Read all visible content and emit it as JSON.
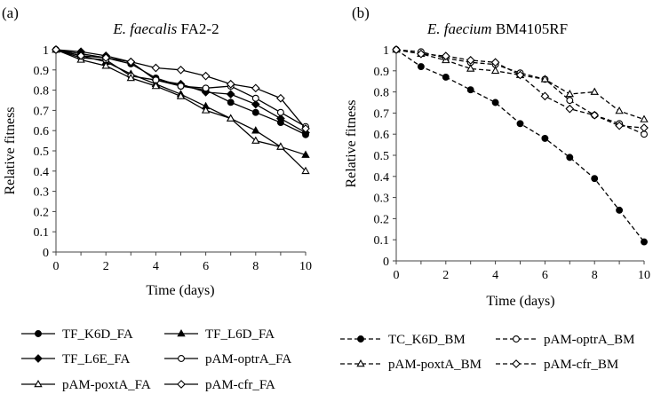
{
  "chart_data": [
    {
      "type": "line",
      "panel_label": "(a)",
      "title_italic": "E. faecalis",
      "title_rest": " FA2-2",
      "xlabel": "Time (days)",
      "ylabel": "Relative fitness",
      "xlim": [
        0,
        10
      ],
      "ylim": [
        0,
        1
      ],
      "xticks": [
        "0",
        "2",
        "4",
        "6",
        "8",
        "10"
      ],
      "yticks": [
        "0",
        "0.1",
        "0.2",
        "0.3",
        "0.4",
        "0.5",
        "0.6",
        "0.7",
        "0.8",
        "0.9",
        "1"
      ],
      "grid": false,
      "x": [
        0,
        1,
        2,
        3,
        4,
        5,
        6,
        7,
        8,
        9,
        10
      ],
      "series": [
        {
          "name": "TF_K6D_FA",
          "marker": "circle-filled",
          "dash": "solid",
          "values": [
            1.0,
            0.98,
            0.96,
            0.93,
            0.86,
            0.82,
            0.8,
            0.74,
            0.69,
            0.64,
            0.58
          ]
        },
        {
          "name": "TF_L6D_FA",
          "marker": "triangle-filled",
          "dash": "solid",
          "values": [
            1.0,
            0.97,
            0.94,
            0.88,
            0.83,
            0.78,
            0.72,
            0.66,
            0.6,
            0.52,
            0.48
          ]
        },
        {
          "name": "TF_L6E_FA",
          "marker": "diamond-filled",
          "dash": "solid",
          "values": [
            1.0,
            0.99,
            0.97,
            0.94,
            0.85,
            0.83,
            0.79,
            0.78,
            0.73,
            0.66,
            0.59
          ]
        },
        {
          "name": "pAM-optrA_FA",
          "marker": "circle-open",
          "dash": "solid",
          "values": [
            1.0,
            0.96,
            0.95,
            0.87,
            0.85,
            0.82,
            0.81,
            0.82,
            0.76,
            0.69,
            0.62
          ]
        },
        {
          "name": "pAM-poxtA_FA",
          "marker": "triangle-open",
          "dash": "solid",
          "values": [
            1.0,
            0.95,
            0.92,
            0.86,
            0.82,
            0.77,
            0.7,
            0.66,
            0.55,
            0.52,
            0.4
          ]
        },
        {
          "name": "pAM-cfr_FA",
          "marker": "diamond-open",
          "dash": "solid",
          "values": [
            1.0,
            0.97,
            0.96,
            0.94,
            0.91,
            0.9,
            0.87,
            0.83,
            0.81,
            0.76,
            0.61
          ]
        }
      ],
      "legend_position": "bottom"
    },
    {
      "type": "line",
      "panel_label": "(b)",
      "title_italic": "E. faecium",
      "title_rest": " BM4105RF",
      "xlabel": "Time (days)",
      "ylabel": "Relative fitness",
      "xlim": [
        0,
        10
      ],
      "ylim": [
        0,
        1
      ],
      "xticks": [
        "0",
        "2",
        "4",
        "6",
        "8",
        "10"
      ],
      "yticks": [
        "0",
        "0.1",
        "0.2",
        "0.3",
        "0.4",
        "0.5",
        "0.6",
        "0.7",
        "0.8",
        "0.9",
        "1"
      ],
      "grid": false,
      "x": [
        0,
        1,
        2,
        3,
        4,
        5,
        6,
        7,
        8,
        9,
        10
      ],
      "series": [
        {
          "name": "TC_K6D_BM",
          "marker": "circle-filled",
          "dash": "dashed",
          "values": [
            1.0,
            0.92,
            0.87,
            0.81,
            0.75,
            0.65,
            0.58,
            0.49,
            0.39,
            0.24,
            0.09
          ]
        },
        {
          "name": "pAM-optrA_BM",
          "marker": "circle-open",
          "dash": "dashed",
          "values": [
            1.0,
            0.99,
            0.96,
            0.94,
            0.93,
            0.89,
            0.86,
            0.76,
            0.69,
            0.65,
            0.6
          ]
        },
        {
          "name": "pAM-poxtA_BM",
          "marker": "triangle-open",
          "dash": "dashed",
          "values": [
            1.0,
            0.98,
            0.95,
            0.91,
            0.9,
            0.88,
            0.86,
            0.79,
            0.8,
            0.71,
            0.67
          ]
        },
        {
          "name": "pAM-cfr_BM",
          "marker": "diamond-open",
          "dash": "dashed",
          "values": [
            1.0,
            0.98,
            0.97,
            0.95,
            0.94,
            0.88,
            0.78,
            0.72,
            0.69,
            0.64,
            0.63
          ]
        }
      ],
      "legend_position": "bottom"
    }
  ]
}
